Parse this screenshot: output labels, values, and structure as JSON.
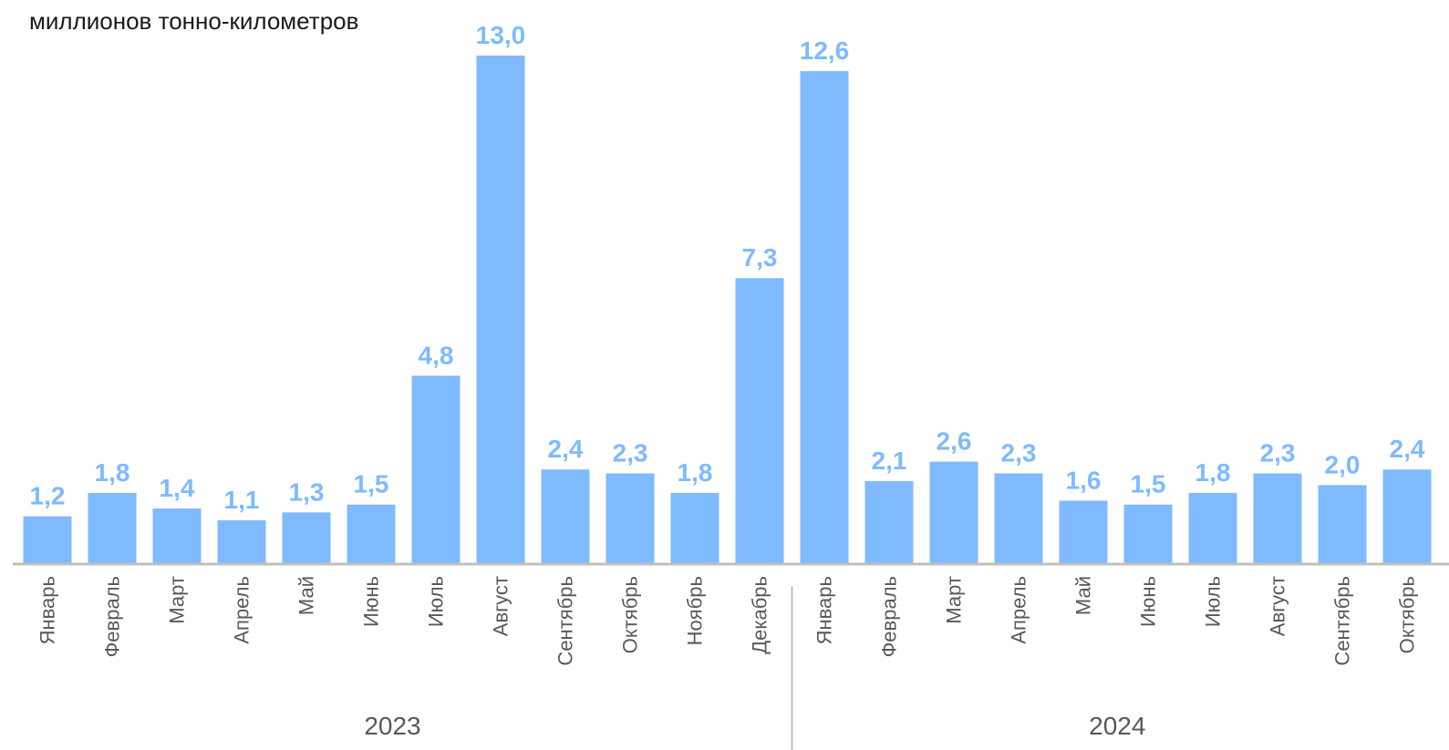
{
  "chart_data": {
    "type": "bar",
    "unit_label": "миллионов тонно-километров",
    "year_groups": [
      {
        "year": "2023",
        "categories": [
          "Январь",
          "Февраль",
          "Март",
          "Апрель",
          "Май",
          "Июнь",
          "Июль",
          "Август",
          "Сентябрь",
          "Октябрь",
          "Ноябрь",
          "Декабрь"
        ],
        "values": [
          1.2,
          1.8,
          1.4,
          1.1,
          1.3,
          1.5,
          4.8,
          13.0,
          2.4,
          2.3,
          1.8,
          7.3
        ],
        "value_labels": [
          "1,2",
          "1,8",
          "1,4",
          "1,1",
          "1,3",
          "1,5",
          "4,8",
          "13,0",
          "2,4",
          "2,3",
          "1,8",
          "7,3"
        ]
      },
      {
        "year": "2024",
        "categories": [
          "Январь",
          "Февраль",
          "Март",
          "Апрель",
          "Май",
          "Июнь",
          "Июль",
          "Август",
          "Сентябрь",
          "Октябрь"
        ],
        "values": [
          12.6,
          2.1,
          2.6,
          2.3,
          1.6,
          1.5,
          1.8,
          2.3,
          2.0,
          2.4
        ],
        "value_labels": [
          "12,6",
          "2,1",
          "2,6",
          "2,3",
          "1,6",
          "1,5",
          "1,8",
          "2,3",
          "2,0",
          "2,4"
        ]
      }
    ],
    "ylim": [
      0,
      13.0
    ],
    "grid": false,
    "legend": "none",
    "colors": {
      "bar": "#7fbaff",
      "value_label": "#7fbaff",
      "axis": "#bfbfbf",
      "category_label": "#595959",
      "year_label": "#595959"
    }
  }
}
